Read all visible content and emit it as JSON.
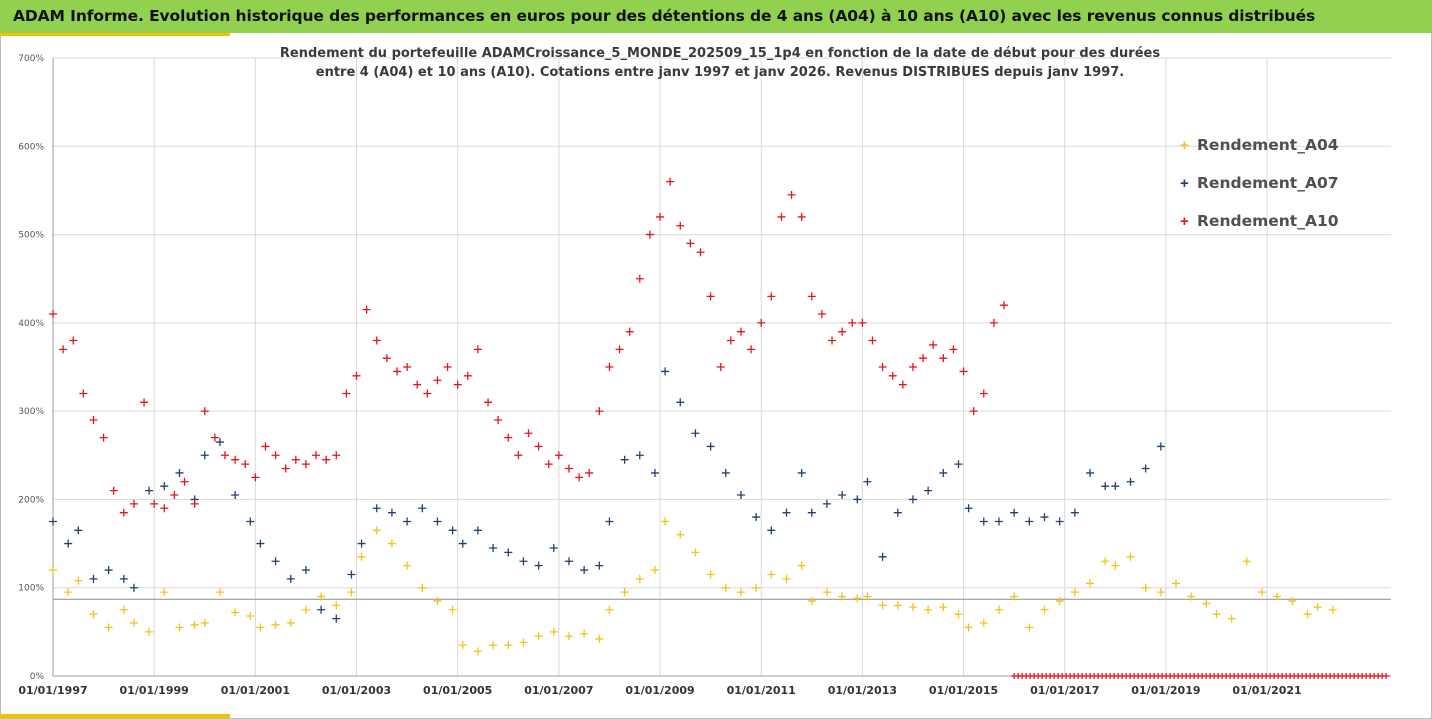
{
  "header": {
    "title": "ADAM Informe. Evolution historique des performances en euros pour des détentions de 4 ans (A04) à 10 ans (A10) avec les revenus connus distribués"
  },
  "colors": {
    "banner": "#92d050",
    "accent": "#f2c000",
    "a04": "#f5c218",
    "a07": "#24406e",
    "a10": "#e8141c",
    "grid": "#d9d9d9"
  },
  "chart_data": {
    "type": "scatter",
    "marker": "+",
    "subtitle_line1": "Rendement du portefeuille ADAMCroissance_5_MONDE_202509_15_1p4  en fonction de la date de début pour des durées",
    "subtitle_line2": "entre 4 (A04) et 10 ans (A10). Cotations entre janv 1997 et janv 2026. Revenus DISTRIBUES depuis janv 1997.",
    "xlabel": "",
    "ylabel": "",
    "xlim": [
      1997.0,
      2023.45
    ],
    "ylim": [
      0,
      700
    ],
    "y_ticks": [
      "0%",
      "100%",
      "200%",
      "300%",
      "400%",
      "500%",
      "600%",
      "700%"
    ],
    "y_tick_values": [
      0,
      100,
      200,
      300,
      400,
      500,
      600,
      700
    ],
    "x_ticks": [
      "01/01/1997",
      "01/01/1999",
      "01/01/2001",
      "01/01/2003",
      "01/01/2005",
      "01/01/2007",
      "01/01/2009",
      "01/01/2011",
      "01/01/2013",
      "01/01/2015",
      "01/01/2017",
      "01/01/2019",
      "01/01/2021"
    ],
    "x_tick_values": [
      1997,
      1999,
      2001,
      2003,
      2005,
      2007,
      2009,
      2011,
      2013,
      2015,
      2017,
      2019,
      2021
    ],
    "reference_line_y": 87,
    "grid": true,
    "legend_position": "top-right",
    "series": [
      {
        "name": "Rendement_A04",
        "x": [
          1997.0,
          1997.3,
          1997.5,
          1997.8,
          1998.1,
          1998.4,
          1998.6,
          1998.9,
          1999.2,
          1999.5,
          1999.8,
          2000.0,
          2000.3,
          2000.6,
          2000.9,
          2001.1,
          2001.4,
          2001.7,
          2002.0,
          2002.3,
          2002.6,
          2002.9,
          2003.1,
          2003.4,
          2003.7,
          2004.0,
          2004.3,
          2004.6,
          2004.9,
          2005.1,
          2005.4,
          2005.7,
          2006.0,
          2006.3,
          2006.6,
          2006.9,
          2007.2,
          2007.5,
          2007.8,
          2008.0,
          2008.3,
          2008.6,
          2008.9,
          2009.1,
          2009.4,
          2009.7,
          2010.0,
          2010.3,
          2010.6,
          2010.9,
          2011.2,
          2011.5,
          2011.8,
          2012.0,
          2012.3,
          2012.6,
          2012.9,
          2013.1,
          2013.4,
          2013.7,
          2014.0,
          2014.3,
          2014.6,
          2014.9,
          2015.1,
          2015.4,
          2015.7,
          2016.0,
          2016.3,
          2016.6,
          2016.9,
          2017.2,
          2017.5,
          2017.8,
          2018.0,
          2018.3,
          2018.6,
          2018.9,
          2019.2,
          2019.5,
          2019.8,
          2020.0,
          2020.3,
          2020.6,
          2020.9,
          2021.2,
          2021.5,
          2021.8,
          2022.0,
          2022.3
        ],
        "values": [
          120,
          95,
          108,
          70,
          55,
          75,
          60,
          50,
          95,
          55,
          58,
          60,
          95,
          72,
          68,
          55,
          58,
          60,
          75,
          90,
          80,
          95,
          135,
          165,
          150,
          125,
          100,
          85,
          75,
          35,
          28,
          35,
          35,
          38,
          45,
          50,
          45,
          48,
          42,
          75,
          95,
          110,
          120,
          175,
          160,
          140,
          115,
          100,
          95,
          100,
          115,
          110,
          125,
          85,
          95,
          90,
          88,
          90,
          80,
          80,
          78,
          75,
          78,
          70,
          55,
          60,
          75,
          90,
          55,
          75,
          85,
          95,
          105,
          130,
          125,
          135,
          100,
          95,
          105,
          90,
          82,
          70,
          65,
          130,
          95,
          90,
          85,
          70,
          78,
          75
        ]
      },
      {
        "name": "Rendement_A07",
        "x": [
          1997.0,
          1997.3,
          1997.5,
          1997.8,
          1998.1,
          1998.4,
          1998.6,
          1998.9,
          1999.2,
          1999.5,
          1999.8,
          2000.0,
          2000.3,
          2000.6,
          2000.9,
          2001.1,
          2001.4,
          2001.7,
          2002.0,
          2002.3,
          2002.6,
          2002.9,
          2003.1,
          2003.4,
          2003.7,
          2004.0,
          2004.3,
          2004.6,
          2004.9,
          2005.1,
          2005.4,
          2005.7,
          2006.0,
          2006.3,
          2006.6,
          2006.9,
          2007.2,
          2007.5,
          2007.8,
          2008.0,
          2008.3,
          2008.6,
          2008.9,
          2009.1,
          2009.4,
          2009.7,
          2010.0,
          2010.3,
          2010.6,
          2010.9,
          2011.2,
          2011.5,
          2011.8,
          2012.0,
          2012.3,
          2012.6,
          2012.9,
          2013.1,
          2013.4,
          2013.7,
          2014.0,
          2014.3,
          2014.6,
          2014.9,
          2015.1,
          2015.4,
          2015.7,
          2016.0,
          2016.3,
          2016.6,
          2016.9,
          2017.2,
          2017.5,
          2017.8,
          2018.0,
          2018.3,
          2018.6,
          2018.9
        ],
        "values": [
          175,
          150,
          165,
          110,
          120,
          110,
          100,
          210,
          215,
          230,
          200,
          250,
          265,
          205,
          175,
          150,
          130,
          110,
          120,
          75,
          65,
          115,
          150,
          190,
          185,
          175,
          190,
          175,
          165,
          150,
          165,
          145,
          140,
          130,
          125,
          145,
          130,
          120,
          125,
          175,
          245,
          250,
          230,
          345,
          310,
          275,
          260,
          230,
          205,
          180,
          165,
          185,
          230,
          185,
          195,
          205,
          200,
          220,
          135,
          185,
          200,
          210,
          230,
          240,
          190,
          175,
          175,
          185,
          175,
          180,
          175,
          185,
          230,
          215,
          215,
          220,
          235,
          260
        ]
      },
      {
        "name": "Rendement_A10",
        "x": [
          1997.0,
          1997.2,
          1997.4,
          1997.6,
          1997.8,
          1998.0,
          1998.2,
          1998.4,
          1998.6,
          1998.8,
          1999.0,
          1999.2,
          1999.4,
          1999.6,
          1999.8,
          2000.0,
          2000.2,
          2000.4,
          2000.6,
          2000.8,
          2001.0,
          2001.2,
          2001.4,
          2001.6,
          2001.8,
          2002.0,
          2002.2,
          2002.4,
          2002.6,
          2002.8,
          2003.0,
          2003.2,
          2003.4,
          2003.6,
          2003.8,
          2004.0,
          2004.2,
          2004.4,
          2004.6,
          2004.8,
          2005.0,
          2005.2,
          2005.4,
          2005.6,
          2005.8,
          2006.0,
          2006.2,
          2006.4,
          2006.6,
          2006.8,
          2007.0,
          2007.2,
          2007.4,
          2007.6,
          2007.8,
          2008.0,
          2008.2,
          2008.4,
          2008.6,
          2008.8,
          2009.0,
          2009.2,
          2009.4,
          2009.6,
          2009.8,
          2010.0,
          2010.2,
          2010.4,
          2010.6,
          2010.8,
          2011.0,
          2011.2,
          2011.4,
          2011.6,
          2011.8,
          2012.0,
          2012.2,
          2012.4,
          2012.6,
          2012.8,
          2013.0,
          2013.2,
          2013.4,
          2013.6,
          2013.8,
          2014.0,
          2014.2,
          2014.4,
          2014.6,
          2014.8,
          2015.0,
          2015.2,
          2015.4,
          2015.6,
          2015.8
        ],
        "values": [
          410,
          370,
          380,
          320,
          290,
          270,
          210,
          185,
          195,
          310,
          195,
          190,
          205,
          220,
          195,
          300,
          270,
          250,
          245,
          240,
          225,
          260,
          250,
          235,
          245,
          240,
          250,
          245,
          250,
          320,
          340,
          415,
          380,
          360,
          345,
          350,
          330,
          320,
          335,
          350,
          330,
          340,
          370,
          310,
          290,
          270,
          250,
          275,
          260,
          240,
          250,
          235,
          225,
          230,
          300,
          350,
          370,
          390,
          450,
          500,
          520,
          560,
          510,
          490,
          480,
          430,
          350,
          380,
          390,
          370,
          400,
          430,
          520,
          545,
          520,
          430,
          410,
          380,
          390,
          400,
          400,
          380,
          350,
          340,
          330,
          350,
          360,
          375,
          360,
          370,
          345,
          300,
          320,
          400,
          420
        ]
      }
    ]
  }
}
